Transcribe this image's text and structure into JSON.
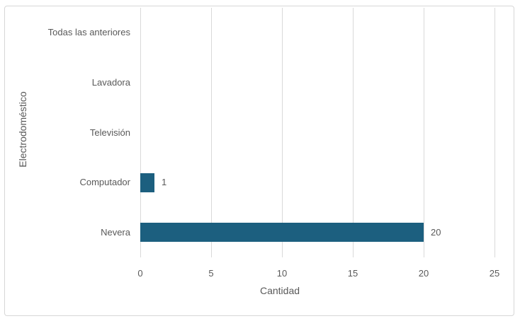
{
  "chart_data": {
    "type": "bar",
    "orientation": "horizontal",
    "title": "",
    "xlabel": "Cantidad",
    "ylabel": "Electrodoméstico",
    "categories": [
      "Todas las anteriores",
      "Lavadora",
      "Televisión",
      "Computador",
      "Nevera"
    ],
    "values": [
      0,
      0,
      0,
      1,
      20
    ],
    "data_labels": [
      "",
      "",
      "",
      "1",
      "20"
    ],
    "xlim": [
      0,
      25
    ],
    "xticks": [
      0,
      5,
      10,
      15,
      20,
      25
    ],
    "grid": "vertical-only",
    "legend": "none",
    "colors": {
      "bar": "#1C5F7F",
      "gridline": "#D9D9D9",
      "text": "#595959",
      "frame_border": "#D7D7D7",
      "background": "#FFFFFF"
    }
  }
}
